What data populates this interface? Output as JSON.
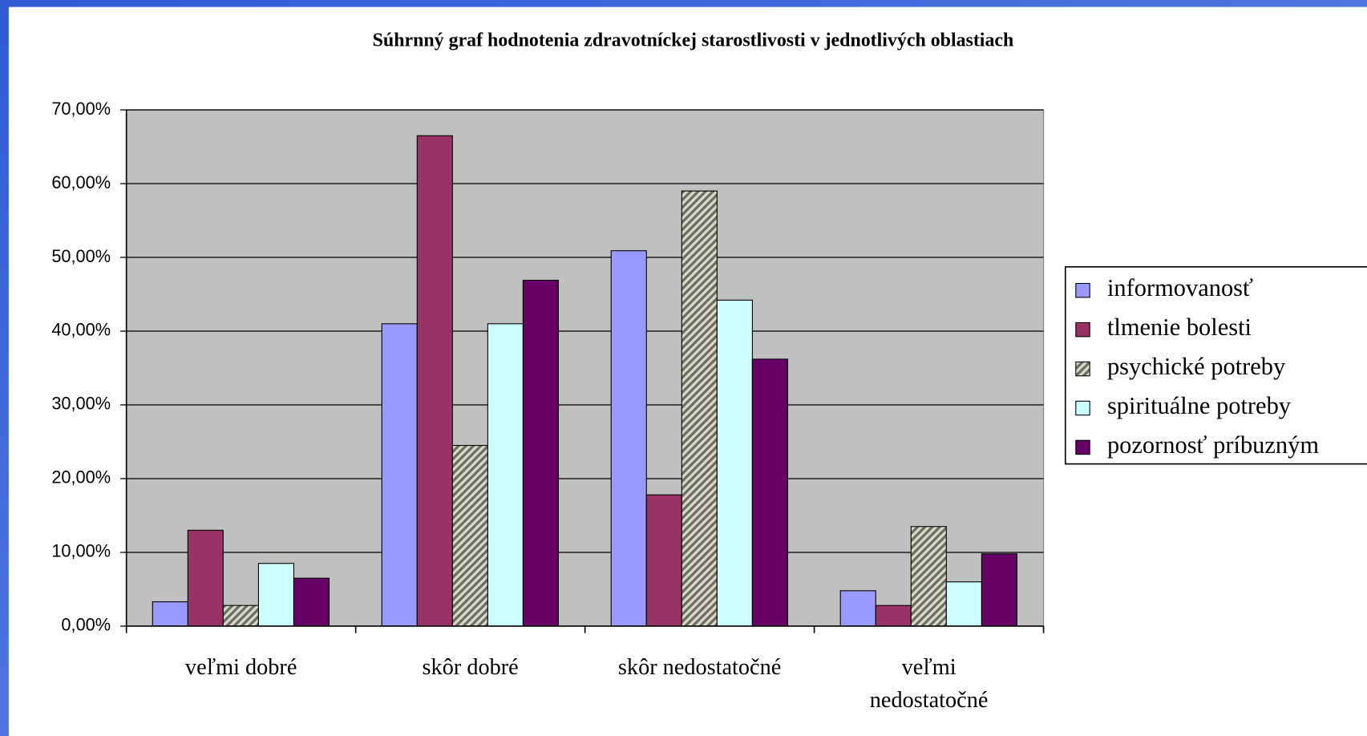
{
  "chart_data": {
    "type": "bar",
    "title": "Súhrnný graf hodnotenia zdravotníckej starostlivosti v jednotlivých oblastiach",
    "categories": [
      "veľmi dobré",
      "skôr dobré",
      "skôr nedostatočné",
      "veľmi nedostatočné"
    ],
    "series": [
      {
        "name": "informovanosť",
        "color": "#9999ff",
        "values": [
          3.3,
          41.0,
          50.9,
          4.8
        ]
      },
      {
        "name": "tlmenie bolesti",
        "color": "#993366",
        "values": [
          13.0,
          66.5,
          17.8,
          2.8
        ]
      },
      {
        "name": "psychické potreby",
        "color": "hatch",
        "values": [
          2.8,
          24.5,
          59.0,
          13.5
        ]
      },
      {
        "name": "spirituálne potreby",
        "color": "#ccffff",
        "values": [
          8.5,
          41.0,
          44.2,
          6.0
        ]
      },
      {
        "name": "pozornosť príbuzným",
        "color": "#660066",
        "values": [
          6.5,
          46.9,
          36.2,
          9.8
        ]
      }
    ],
    "ylim": [
      0,
      70
    ],
    "yticks": [
      {
        "value": 0,
        "label": "0,00%"
      },
      {
        "value": 10,
        "label": "10,00%"
      },
      {
        "value": 20,
        "label": "20,00%"
      },
      {
        "value": 30,
        "label": "30,00%"
      },
      {
        "value": 40,
        "label": "40,00%"
      },
      {
        "value": 50,
        "label": "50,00%"
      },
      {
        "value": 60,
        "label": "60,00%"
      },
      {
        "value": 70,
        "label": "70,00%"
      }
    ],
    "grid": true,
    "legend": "right"
  }
}
